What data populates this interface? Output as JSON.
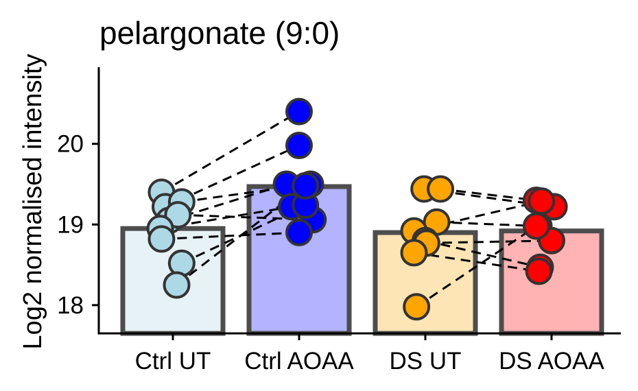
{
  "chart_data": {
    "type": "bar",
    "title": "pelargonate (9:0)",
    "xlabel": "",
    "ylabel": "Log2 normalised intensity",
    "ylim": [
      17.65,
      20.95
    ],
    "yticks": [
      18,
      19,
      20
    ],
    "grid": false,
    "legend": "none",
    "categories": [
      "Ctrl UT",
      "Ctrl AOAA",
      "DS UT",
      "DS AOAA"
    ],
    "values": [
      18.95,
      19.47,
      18.9,
      18.92
    ],
    "bar_fill": [
      "#e7f2f7",
      "#b3b3ff",
      "#fde5b5",
      "#ffb3b3"
    ],
    "point_fill": [
      "#add8e6",
      "#0000ff",
      "#ffa500",
      "#ff0000"
    ],
    "paired_points": [
      [
        19.4,
        20.4
      ],
      [
        19.22,
        19.98
      ],
      [
        19.05,
        19.5
      ],
      [
        19.28,
        19.5
      ],
      [
        19.12,
        19.06
      ],
      [
        18.95,
        19.22
      ],
      [
        18.82,
        18.9
      ],
      [
        18.52,
        19.24
      ],
      [
        18.25,
        19.48
      ],
      [
        19.44,
        19.22
      ],
      [
        19.44,
        19.3
      ],
      [
        19.03,
        18.98
      ],
      [
        18.92,
        19.29
      ],
      [
        18.8,
        18.47
      ],
      [
        18.77,
        18.8
      ],
      [
        18.65,
        18.42
      ],
      [
        17.98,
        18.98
      ]
    ],
    "pairs": [
      [
        {
          "group": 0,
          "y": 19.4,
          "dx": -0.09
        },
        {
          "group": 1,
          "y": 20.4,
          "dx": 0.0
        }
      ],
      [
        {
          "group": 0,
          "y": 19.22,
          "dx": -0.06
        },
        {
          "group": 1,
          "y": 19.98,
          "dx": 0.0
        }
      ],
      [
        {
          "group": 0,
          "y": 19.05,
          "dx": -0.03
        },
        {
          "group": 1,
          "y": 19.5,
          "dx": -0.1
        }
      ],
      [
        {
          "group": 0,
          "y": 19.28,
          "dx": 0.07
        },
        {
          "group": 1,
          "y": 19.5,
          "dx": 0.09
        }
      ],
      [
        {
          "group": 0,
          "y": 19.12,
          "dx": 0.04
        },
        {
          "group": 1,
          "y": 19.06,
          "dx": 0.11
        }
      ],
      [
        {
          "group": 0,
          "y": 18.95,
          "dx": -0.1
        },
        {
          "group": 1,
          "y": 19.22,
          "dx": -0.06
        }
      ],
      [
        {
          "group": 0,
          "y": 18.82,
          "dx": -0.09
        },
        {
          "group": 1,
          "y": 18.9,
          "dx": 0.0
        }
      ],
      [
        {
          "group": 0,
          "y": 18.52,
          "dx": 0.07
        },
        {
          "group": 1,
          "y": 19.24,
          "dx": 0.05
        }
      ],
      [
        {
          "group": 0,
          "y": 18.25,
          "dx": 0.03
        },
        {
          "group": 1,
          "y": 19.48,
          "dx": 0.05
        }
      ],
      [
        {
          "group": 2,
          "y": 19.44,
          "dx": -0.01
        },
        {
          "group": 3,
          "y": 19.22,
          "dx": 0.02
        }
      ],
      [
        {
          "group": 2,
          "y": 19.44,
          "dx": 0.12
        },
        {
          "group": 3,
          "y": 19.3,
          "dx": -0.12
        }
      ],
      [
        {
          "group": 2,
          "y": 19.03,
          "dx": 0.09
        },
        {
          "group": 3,
          "y": 18.98,
          "dx": -0.1
        }
      ],
      [
        {
          "group": 2,
          "y": 18.92,
          "dx": -0.09
        },
        {
          "group": 3,
          "y": 19.29,
          "dx": -0.08
        }
      ],
      [
        {
          "group": 2,
          "y": 18.8,
          "dx": 0.0
        },
        {
          "group": 3,
          "y": 18.47,
          "dx": -0.09
        }
      ],
      [
        {
          "group": 2,
          "y": 18.77,
          "dx": 0.01
        },
        {
          "group": 3,
          "y": 18.8,
          "dx": 0.0
        }
      ],
      [
        {
          "group": 2,
          "y": 18.65,
          "dx": -0.09
        },
        {
          "group": 3,
          "y": 18.42,
          "dx": -0.1
        }
      ],
      [
        {
          "group": 2,
          "y": 17.98,
          "dx": -0.07
        },
        {
          "group": 3,
          "y": 18.98,
          "dx": -0.12
        }
      ]
    ]
  }
}
